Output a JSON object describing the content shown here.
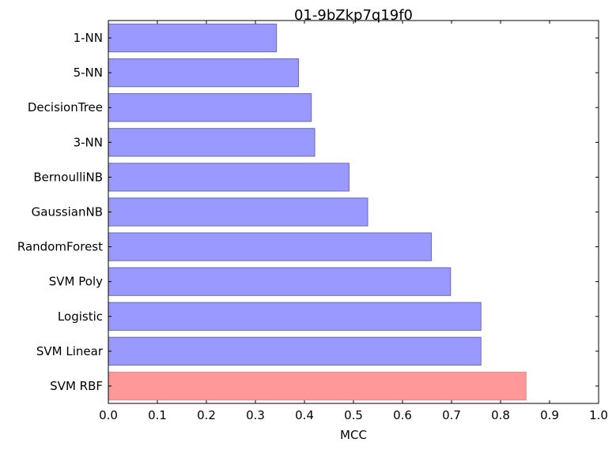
{
  "chart_data": {
    "type": "bar",
    "orientation": "horizontal",
    "title": "01-9bZkp7q19f0",
    "xlabel": "MCC",
    "ylabel": "",
    "xlim": [
      0.0,
      1.0
    ],
    "xticks": [
      "0.0",
      "0.1",
      "0.2",
      "0.3",
      "0.4",
      "0.5",
      "0.6",
      "0.7",
      "0.8",
      "0.9",
      "1.0"
    ],
    "categories": [
      "1-NN",
      "5-NN",
      "DecisionTree",
      "3-NN",
      "BernoulliNB",
      "GaussianNB",
      "RandomForest",
      "SVM Poly",
      "Logistic",
      "SVM Linear",
      "SVM RBF"
    ],
    "values": [
      0.343,
      0.388,
      0.414,
      0.421,
      0.491,
      0.529,
      0.659,
      0.698,
      0.76,
      0.76,
      0.852
    ],
    "highlight": "SVM RBF",
    "colors": {
      "bar": "#9999ff",
      "bar_edge": "#6b6bb3",
      "highlight": "#ff9999",
      "highlight_edge": "#e08a8a",
      "axis": "#000000"
    },
    "grid": false
  }
}
